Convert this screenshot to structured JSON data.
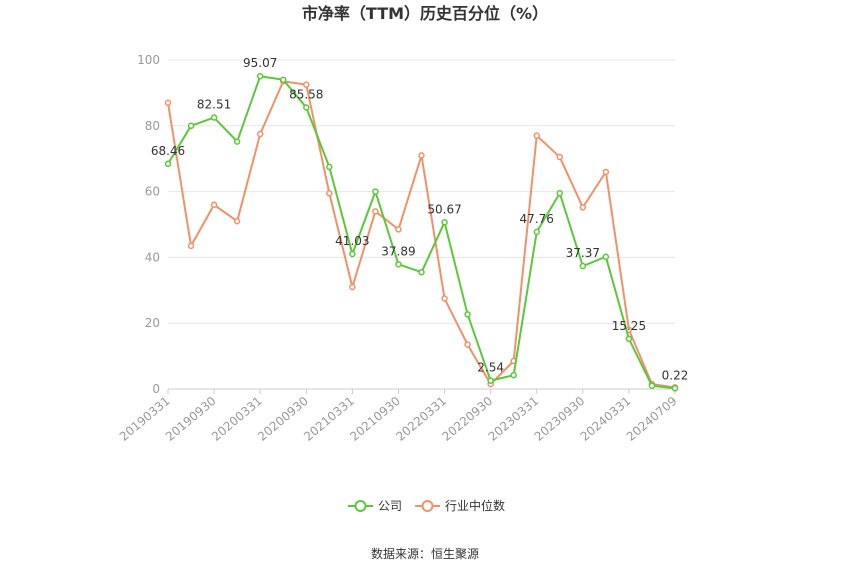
{
  "chart_data": {
    "type": "line",
    "title": "市净率（TTM）历史百分位（%）",
    "source": "数据来源：恒生聚源",
    "ylim": [
      0,
      100
    ],
    "yticks": [
      0,
      20,
      40,
      60,
      80,
      100
    ],
    "grid": true,
    "legend_position": "bottom",
    "x": [
      "20190331",
      "20190630",
      "20190930",
      "20191231",
      "20200331",
      "20200630",
      "20200930",
      "20201231",
      "20210331",
      "20210630",
      "20210930",
      "20211231",
      "20220331",
      "20220630",
      "20220930",
      "20221231",
      "20230331",
      "20230630",
      "20230930",
      "20231231",
      "20240331",
      "20240630",
      "20240709"
    ],
    "xtick_labels": [
      "20190331",
      "20190930",
      "20200331",
      "20200930",
      "20210331",
      "20210930",
      "20220331",
      "20220930",
      "20230331",
      "20230930",
      "20240331",
      "20240709"
    ],
    "series": [
      {
        "name": "公司",
        "color": "#5cc73a",
        "values": [
          68.46,
          80,
          82.51,
          75.2,
          95.07,
          94,
          85.58,
          67.5,
          41.03,
          60,
          37.89,
          35.5,
          50.67,
          22.7,
          2.54,
          4.2,
          47.76,
          59.5,
          37.37,
          40.2,
          15.25,
          1.0,
          0.22
        ],
        "labels": [
          "68.46",
          "",
          "82.51",
          "",
          "95.07",
          "",
          "85.58",
          "",
          "41.03",
          "",
          "37.89",
          "",
          "50.67",
          "",
          "2.54",
          "",
          "47.76",
          "",
          "37.37",
          "",
          "15.25",
          "",
          "0.22"
        ]
      },
      {
        "name": "行业中位数",
        "color": "#f0916a",
        "values": [
          87,
          43.5,
          56,
          51,
          77.5,
          93.5,
          92.5,
          59.5,
          31,
          54,
          48.5,
          71,
          27.5,
          13.5,
          1.5,
          8.5,
          77,
          70.5,
          55.2,
          66,
          18,
          1.5,
          0.5
        ],
        "labels": []
      }
    ]
  }
}
